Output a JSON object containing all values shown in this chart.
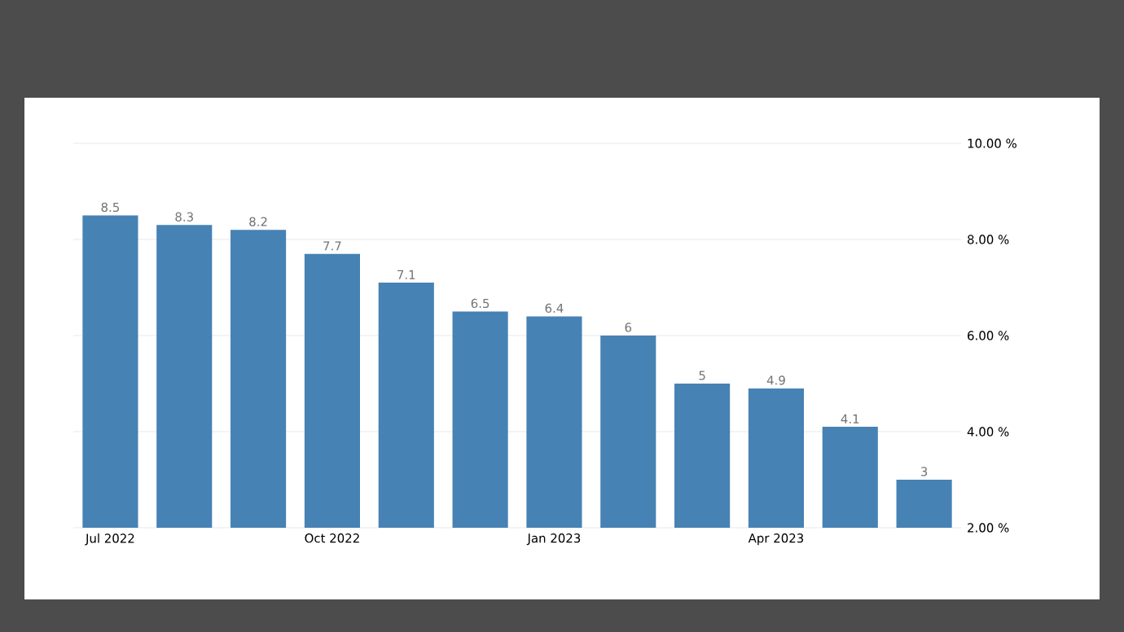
{
  "chart_data": {
    "type": "bar",
    "categories": [
      "Jul 2022",
      null,
      null,
      "Oct 2022",
      null,
      null,
      "Jan 2023",
      null,
      null,
      "Apr 2023",
      null,
      null
    ],
    "values": [
      8.5,
      8.3,
      8.2,
      7.7,
      7.1,
      6.5,
      6.4,
      6,
      5,
      4.9,
      4.1,
      3
    ],
    "color": "#4682b4",
    "ylim": [
      2,
      10
    ],
    "yticks": [
      {
        "value": 2,
        "label": "2.00 %"
      },
      {
        "value": 4,
        "label": "4.00 %"
      },
      {
        "value": 6,
        "label": "6.00 %"
      },
      {
        "value": 8,
        "label": "8.00 %"
      },
      {
        "value": 10,
        "label": "10.00 %"
      }
    ],
    "grid": "y",
    "data_labels": true
  }
}
